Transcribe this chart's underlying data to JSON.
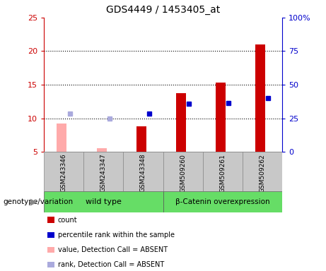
{
  "title": "GDS4449 / 1453405_at",
  "samples": [
    "GSM243346",
    "GSM243347",
    "GSM243348",
    "GSM509260",
    "GSM509261",
    "GSM509262"
  ],
  "group1_name": "wild type",
  "group2_name": "β-Catenin overexpression",
  "count_values": [
    null,
    null,
    8.8,
    13.7,
    15.3,
    21.0
  ],
  "count_absent": [
    9.2,
    5.5,
    null,
    null,
    null,
    null
  ],
  "rank_values": [
    null,
    null,
    10.7,
    12.2,
    12.3,
    13.0
  ],
  "rank_absent": [
    10.7,
    10.0,
    null,
    null,
    null,
    null
  ],
  "ylim_left": [
    5,
    25
  ],
  "ylim_right": [
    0,
    100
  ],
  "yticks_left": [
    5,
    10,
    15,
    20,
    25
  ],
  "yticks_right": [
    0,
    25,
    50,
    75,
    100
  ],
  "ytick_labels_left": [
    "5",
    "10",
    "15",
    "20",
    "25"
  ],
  "ytick_labels_right": [
    "0",
    "25",
    "50",
    "75",
    "100%"
  ],
  "bar_width": 0.25,
  "marker_size": 4,
  "color_count": "#cc0000",
  "color_rank": "#0000cc",
  "color_count_absent": "#ffaaaa",
  "color_rank_absent": "#aaaadd",
  "legend_items": [
    {
      "label": "count",
      "color": "#cc0000"
    },
    {
      "label": "percentile rank within the sample",
      "color": "#0000cc"
    },
    {
      "label": "value, Detection Call = ABSENT",
      "color": "#ffaaaa"
    },
    {
      "label": "rank, Detection Call = ABSENT",
      "color": "#aaaadd"
    }
  ],
  "bg_plot": "#ffffff",
  "bg_sample_row": "#c8c8c8",
  "group_color": "#66dd66",
  "group_label": "genotype/variation",
  "grid_color": "#000000"
}
